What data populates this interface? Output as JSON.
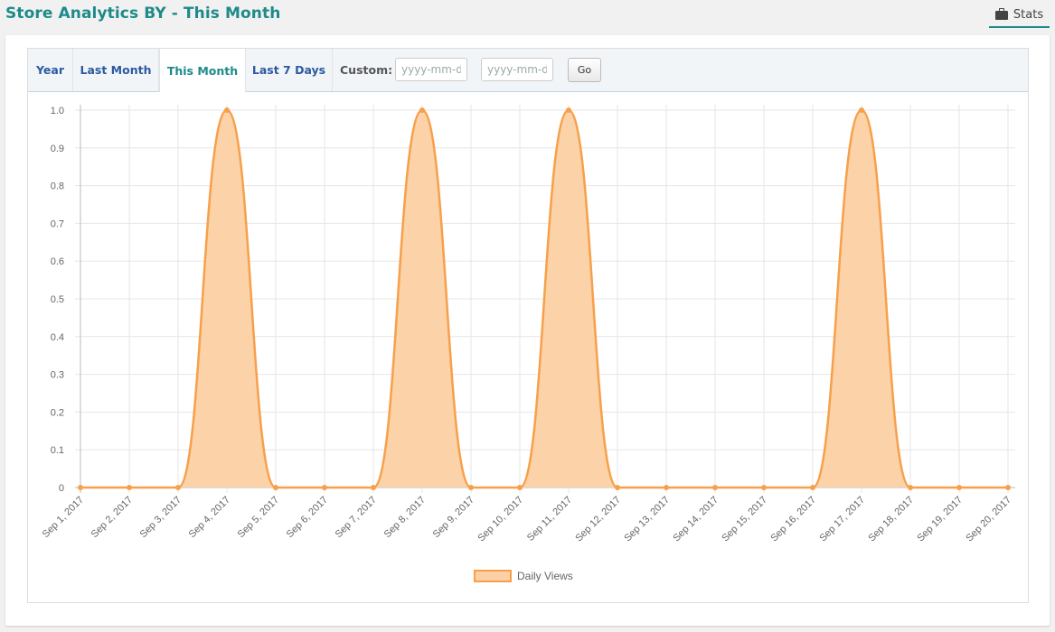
{
  "header": {
    "title": "Store Analytics BY - This Month",
    "stats_label": "Stats"
  },
  "tabs": [
    {
      "label": "Year",
      "active": false
    },
    {
      "label": "Last Month",
      "active": false
    },
    {
      "label": "This Month",
      "active": true
    },
    {
      "label": "Last 7 Days",
      "active": false
    }
  ],
  "custom": {
    "label": "Custom:",
    "from_placeholder": "yyyy-mm-dd",
    "to_placeholder": "yyyy-mm-dd",
    "go_label": "Go"
  },
  "colors": {
    "accent": "#1e8a8a",
    "series_line": "#f7a04b",
    "series_fill": "#fcd0a4"
  },
  "chart_data": {
    "type": "area",
    "x": [
      "Sep 1, 2017",
      "Sep 2, 2017",
      "Sep 3, 2017",
      "Sep 4, 2017",
      "Sep 5, 2017",
      "Sep 6, 2017",
      "Sep 7, 2017",
      "Sep 8, 2017",
      "Sep 9, 2017",
      "Sep 10, 2017",
      "Sep 11, 2017",
      "Sep 12, 2017",
      "Sep 13, 2017",
      "Sep 14, 2017",
      "Sep 15, 2017",
      "Sep 16, 2017",
      "Sep 17, 2017",
      "Sep 18, 2017",
      "Sep 19, 2017",
      "Sep 20, 2017"
    ],
    "series": [
      {
        "name": "Daily Views",
        "values": [
          0,
          0,
          0,
          1,
          0,
          0,
          0,
          1,
          0,
          0,
          1,
          0,
          0,
          0,
          0,
          0,
          1,
          0,
          0,
          0
        ]
      }
    ],
    "ylim": [
      0,
      1.0
    ],
    "yticks": [
      "0",
      "0.1",
      "0.2",
      "0.3",
      "0.4",
      "0.5",
      "0.6",
      "0.7",
      "0.8",
      "0.9",
      "1.0"
    ],
    "grid": true,
    "legend": "bottom-center"
  }
}
